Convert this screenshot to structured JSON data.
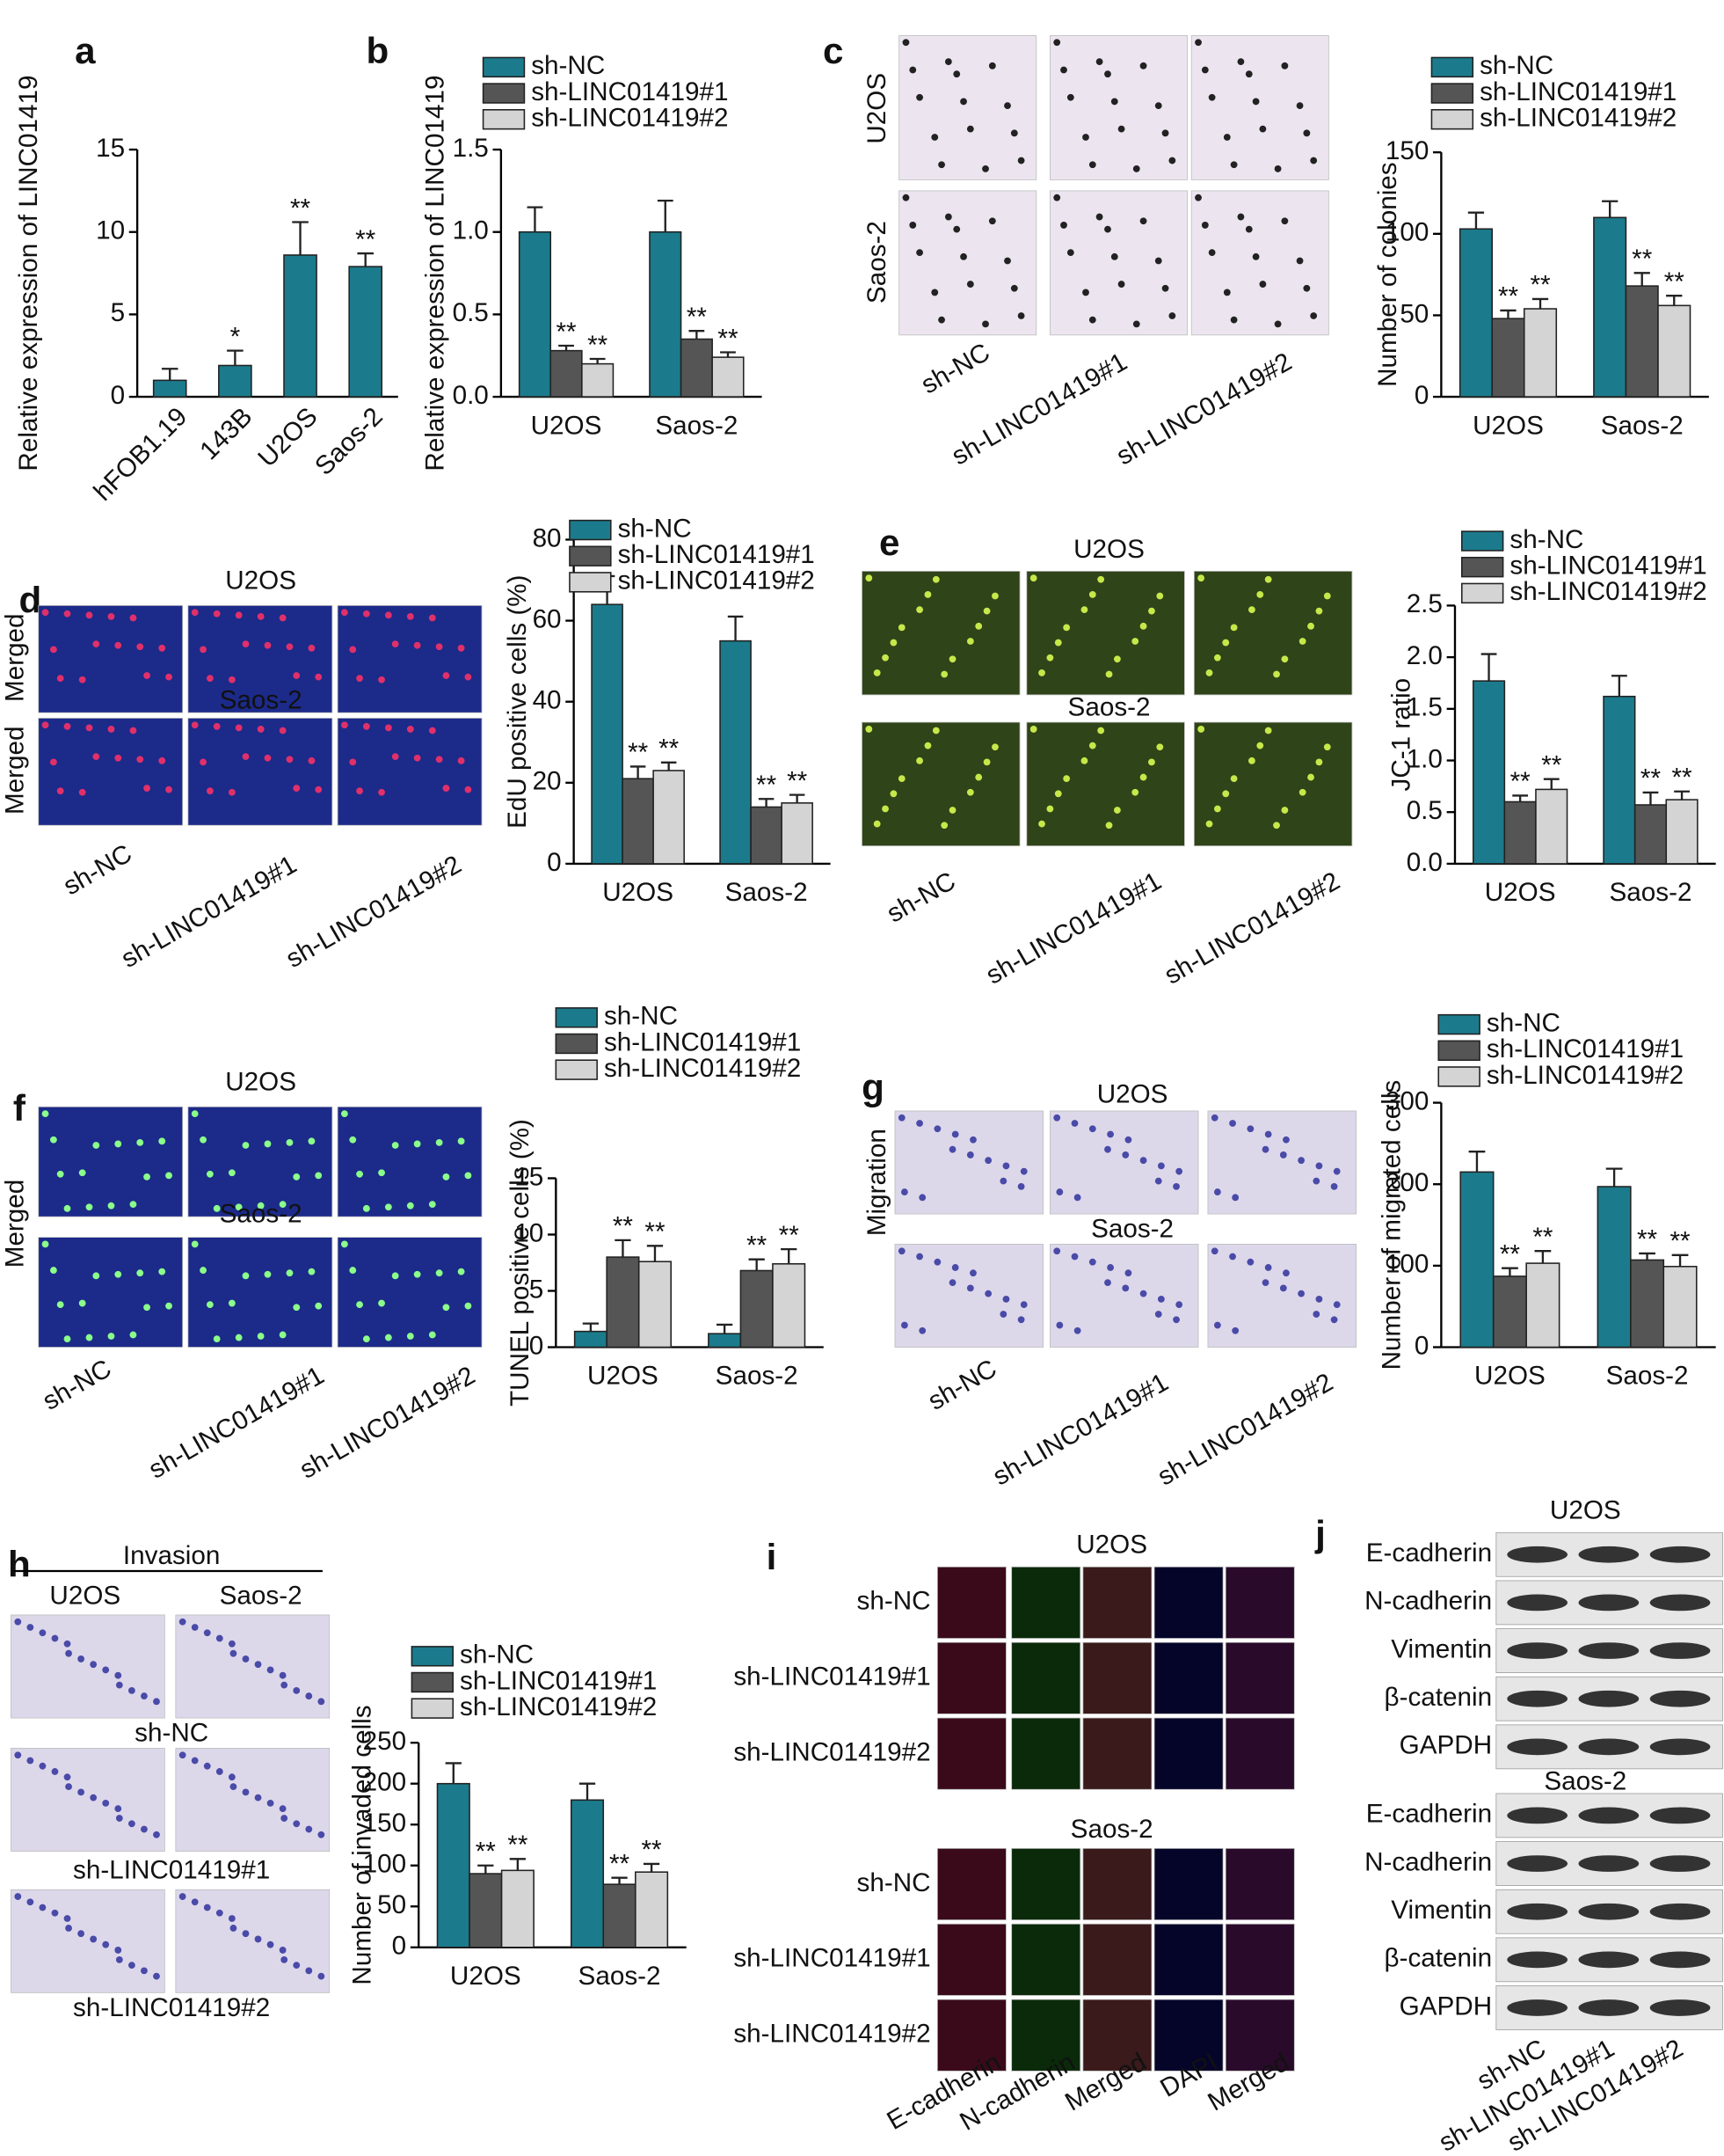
{
  "chart_data": [
    {
      "type": "bar",
      "panel": "a",
      "ylabel": "Relative expression of LINC01419",
      "categories": [
        "hFOB1.19",
        "143B",
        "U2OS",
        "Saos-2"
      ],
      "values": [
        1.0,
        1.9,
        8.6,
        7.9
      ],
      "errors": [
        0.7,
        0.9,
        2.0,
        0.8
      ],
      "annotations": [
        null,
        "*",
        "**",
        "**"
      ],
      "color": "#1b7b8c",
      "ylim": [
        0,
        15
      ],
      "yticks": [
        0,
        5,
        10,
        15
      ]
    },
    {
      "type": "grouped_bar",
      "panel": "b",
      "ylabel": "Relative expression of LINC01419",
      "categories": [
        "U2OS",
        "Saos-2"
      ],
      "series": [
        {
          "name": "sh-NC",
          "color": "#1b7b8c",
          "values": [
            1.0,
            1.0
          ],
          "errors": [
            0.15,
            0.19
          ]
        },
        {
          "name": "sh-LINC01419#1",
          "color": "#555555",
          "values": [
            0.28,
            0.35
          ],
          "errors": [
            0.03,
            0.05
          ],
          "annotations": [
            "**",
            "**"
          ]
        },
        {
          "name": "sh-LINC01419#2",
          "color": "#d4d4d4",
          "values": [
            0.2,
            0.24
          ],
          "errors": [
            0.03,
            0.03
          ],
          "annotations": [
            "**",
            "**"
          ]
        }
      ],
      "ylim": [
        0,
        1.5
      ],
      "yticks": [
        {
          "value": 0,
          "label": "0.0"
        },
        0.5,
        {
          "value": 1,
          "label": "1.0"
        },
        1.5
      ]
    },
    {
      "type": "grouped_bar",
      "panel": "c",
      "ylabel": "Number of colonies",
      "categories": [
        "U2OS",
        "Saos-2"
      ],
      "series": [
        {
          "name": "sh-NC",
          "color": "#1b7b8c",
          "values": [
            103,
            110
          ],
          "errors": [
            10,
            10
          ]
        },
        {
          "name": "sh-LINC01419#1",
          "color": "#555555",
          "values": [
            48,
            68
          ],
          "errors": [
            5,
            8
          ],
          "annotations": [
            "**",
            "**"
          ]
        },
        {
          "name": "sh-LINC01419#2",
          "color": "#d4d4d4",
          "values": [
            54,
            56
          ],
          "errors": [
            6,
            6
          ],
          "annotations": [
            "**",
            "**"
          ]
        }
      ],
      "ylim": [
        0,
        150
      ],
      "yticks": [
        0,
        50,
        100,
        150
      ]
    },
    {
      "type": "grouped_bar",
      "panel": "d",
      "ylabel": "EdU positive cells (%)",
      "categories": [
        "U2OS",
        "Saos-2"
      ],
      "series": [
        {
          "name": "sh-NC",
          "color": "#1b7b8c",
          "values": [
            64,
            55
          ],
          "errors": [
            7,
            6
          ]
        },
        {
          "name": "sh-LINC01419#1",
          "color": "#555555",
          "values": [
            21,
            14
          ],
          "errors": [
            3,
            2
          ],
          "annotations": [
            "**",
            "**"
          ]
        },
        {
          "name": "sh-LINC01419#2",
          "color": "#d4d4d4",
          "values": [
            23,
            15
          ],
          "errors": [
            2,
            2
          ],
          "annotations": [
            "**",
            "**"
          ]
        }
      ],
      "ylim": [
        0,
        80
      ],
      "yticks": [
        0,
        20,
        40,
        60,
        80
      ]
    },
    {
      "type": "grouped_bar",
      "panel": "e",
      "ylabel": "JC-1 ratio",
      "categories": [
        "U2OS",
        "Saos-2"
      ],
      "series": [
        {
          "name": "sh-NC",
          "color": "#1b7b8c",
          "values": [
            1.77,
            1.62
          ],
          "errors": [
            0.26,
            0.2
          ]
        },
        {
          "name": "sh-LINC01419#1",
          "color": "#555555",
          "values": [
            0.6,
            0.57
          ],
          "errors": [
            0.06,
            0.12
          ],
          "annotations": [
            "**",
            "**"
          ]
        },
        {
          "name": "sh-LINC01419#2",
          "color": "#d4d4d4",
          "values": [
            0.72,
            0.62
          ],
          "errors": [
            0.1,
            0.08
          ],
          "annotations": [
            "**",
            "**"
          ]
        }
      ],
      "ylim": [
        0,
        2.5
      ],
      "yticks": [
        {
          "value": 0,
          "label": "0.0"
        },
        0.5,
        {
          "value": 1,
          "label": "1.0"
        },
        1.5,
        {
          "value": 2,
          "label": "2.0"
        },
        2.5
      ]
    },
    {
      "type": "grouped_bar",
      "panel": "f",
      "ylabel": "TUNEL positive cells (%)",
      "categories": [
        "U2OS",
        "Saos-2"
      ],
      "series": [
        {
          "name": "sh-NC",
          "color": "#1b7b8c",
          "values": [
            1.4,
            1.2
          ],
          "errors": [
            0.7,
            0.8
          ]
        },
        {
          "name": "sh-LINC01419#1",
          "color": "#555555",
          "values": [
            8.0,
            6.8
          ],
          "errors": [
            1.5,
            1.0
          ],
          "annotations": [
            "**",
            "**"
          ]
        },
        {
          "name": "sh-LINC01419#2",
          "color": "#d4d4d4",
          "values": [
            7.6,
            7.4
          ],
          "errors": [
            1.4,
            1.3
          ],
          "annotations": [
            "**",
            "**"
          ]
        }
      ],
      "ylim": [
        0,
        15
      ],
      "yticks": [
        0,
        5,
        10,
        15
      ]
    },
    {
      "type": "grouped_bar",
      "panel": "g",
      "ylabel": "Number of migrated cells",
      "categories": [
        "U2OS",
        "Saos-2"
      ],
      "series": [
        {
          "name": "sh-NC",
          "color": "#1b7b8c",
          "values": [
            215,
            197
          ],
          "errors": [
            25,
            22
          ]
        },
        {
          "name": "sh-LINC01419#1",
          "color": "#555555",
          "values": [
            87,
            107
          ],
          "errors": [
            10,
            8
          ],
          "annotations": [
            "**",
            "**"
          ]
        },
        {
          "name": "sh-LINC01419#2",
          "color": "#d4d4d4",
          "values": [
            103,
            99
          ],
          "errors": [
            15,
            14
          ],
          "annotations": [
            "**",
            "**"
          ]
        }
      ],
      "ylim": [
        0,
        300
      ],
      "yticks": [
        0,
        100,
        200,
        300
      ]
    },
    {
      "type": "grouped_bar",
      "panel": "h",
      "ylabel": "Number of invaded cells",
      "categories": [
        "U2OS",
        "Saos-2"
      ],
      "series": [
        {
          "name": "sh-NC",
          "color": "#1b7b8c",
          "values": [
            200,
            180
          ],
          "errors": [
            25,
            20
          ]
        },
        {
          "name": "sh-LINC01419#1",
          "color": "#555555",
          "values": [
            90,
            77
          ],
          "errors": [
            10,
            8
          ],
          "annotations": [
            "**",
            "**"
          ]
        },
        {
          "name": "sh-LINC01419#2",
          "color": "#d4d4d4",
          "values": [
            94,
            92
          ],
          "errors": [
            14,
            10
          ],
          "annotations": [
            "**",
            "**"
          ]
        }
      ],
      "ylim": [
        0,
        250
      ],
      "yticks": [
        0,
        50,
        100,
        150,
        200,
        250
      ]
    }
  ],
  "figure_panels": {
    "c": {
      "rows": [
        "U2OS",
        "Saos-2"
      ],
      "columns": [
        "sh-NC",
        "sh-LINC01419#1",
        "sh-LINC01419#2"
      ]
    },
    "d": {
      "rows": [
        "U2OS",
        "Saos-2"
      ],
      "stain": "Merged",
      "columns": [
        "sh-NC",
        "sh-LINC01419#1",
        "sh-LINC01419#2"
      ]
    },
    "e": {
      "rows": [
        "U2OS",
        "Saos-2"
      ],
      "columns": [
        "sh-NC",
        "sh-LINC01419#1",
        "sh-LINC01419#2"
      ]
    },
    "f": {
      "rows": [
        "U2OS",
        "Saos-2"
      ],
      "stain": "Merged",
      "columns": [
        "sh-NC",
        "sh-LINC01419#1",
        "sh-LINC01419#2"
      ]
    },
    "g": {
      "rows": [
        "U2OS",
        "Saos-2"
      ],
      "stain": "Migration",
      "columns": [
        "sh-NC",
        "sh-LINC01419#1",
        "sh-LINC01419#2"
      ]
    },
    "h": {
      "assay": "Invasion",
      "columns": [
        "U2OS",
        "Saos-2"
      ],
      "rows": [
        "sh-NC",
        "sh-LINC01419#1",
        "sh-LINC01419#2"
      ]
    },
    "i": {
      "label": "i",
      "cell_lines": [
        "U2OS",
        "Saos-2"
      ],
      "rows": [
        "sh-NC",
        "sh-LINC01419#1",
        "sh-LINC01419#2"
      ],
      "columns": [
        "E-cadherin",
        "N-cadherin",
        "Merged",
        "DAPI",
        "Merged"
      ]
    },
    "j": {
      "label": "j",
      "cell_lines": [
        "U2OS",
        "Saos-2"
      ],
      "proteins": [
        "E-cadherin",
        "N-cadherin",
        "Vimentin",
        "β-catenin",
        "GAPDH"
      ],
      "columns": [
        "sh-NC",
        "sh-LINC01419#1",
        "sh-LINC01419#2"
      ]
    }
  }
}
